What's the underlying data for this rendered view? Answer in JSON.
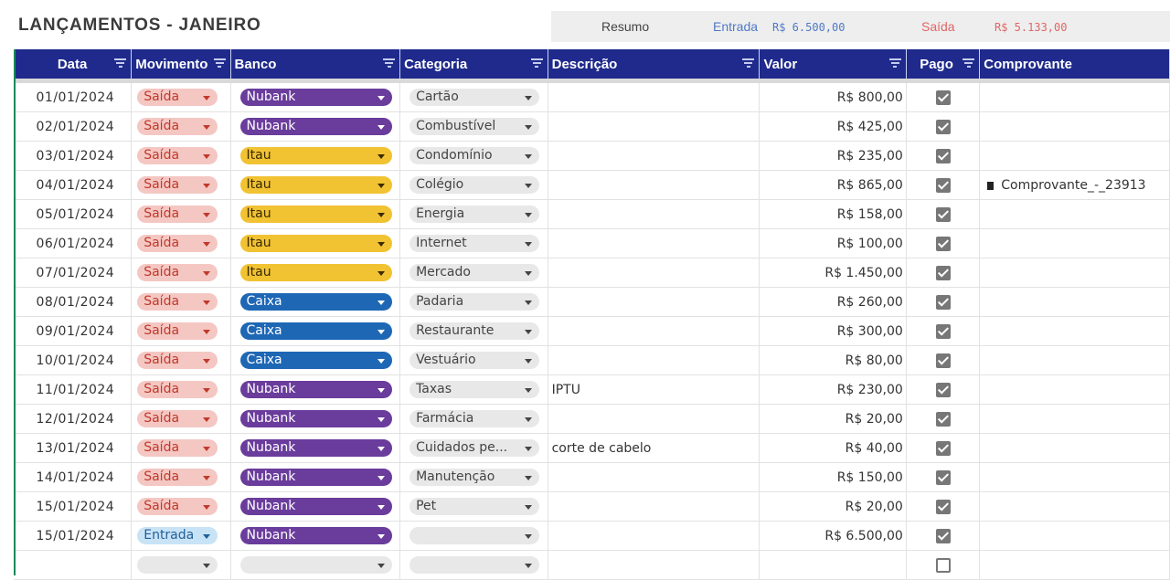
{
  "title": "LANÇAMENTOS - JANEIRO",
  "summary": {
    "label": "Resumo",
    "entrada_label": "Entrada",
    "entrada_value": "R$ 6.500,00",
    "saida_label": "Saída",
    "saida_value": "R$ 5.133,00"
  },
  "columns": [
    "Data",
    "Movimento",
    "Banco",
    "Categoria",
    "Descrição",
    "Valor",
    "Pago",
    "Comprovante"
  ],
  "colors": {
    "header_bg": "#1f2a8c",
    "saida_bg": "#f4c7c3",
    "saida_text": "#c0392b",
    "entrada_bg": "#c9e3f6",
    "entrada_text": "#1f5f99",
    "nubank": "#6a3c9c",
    "itau": "#f1c232",
    "caixa": "#1e67b5",
    "entrada_summary": "#5079c6",
    "saida_summary": "#e06666"
  },
  "rows": [
    {
      "data": "01/01/2024",
      "movimento": "Saída",
      "banco": "Nubank",
      "categoria": "Cartão",
      "descricao": "",
      "valor": "R$ 800,00",
      "pago": true,
      "comprovante": ""
    },
    {
      "data": "02/01/2024",
      "movimento": "Saída",
      "banco": "Nubank",
      "categoria": "Combustível",
      "descricao": "",
      "valor": "R$ 425,00",
      "pago": true,
      "comprovante": ""
    },
    {
      "data": "03/01/2024",
      "movimento": "Saída",
      "banco": "Itau",
      "categoria": "Condomínio",
      "descricao": "",
      "valor": "R$ 235,00",
      "pago": true,
      "comprovante": ""
    },
    {
      "data": "04/01/2024",
      "movimento": "Saída",
      "banco": "Itau",
      "categoria": "Colégio",
      "descricao": "",
      "valor": "R$ 865,00",
      "pago": true,
      "comprovante": "Comprovante_-_23913"
    },
    {
      "data": "05/01/2024",
      "movimento": "Saída",
      "banco": "Itau",
      "categoria": "Energia",
      "descricao": "",
      "valor": "R$ 158,00",
      "pago": true,
      "comprovante": ""
    },
    {
      "data": "06/01/2024",
      "movimento": "Saída",
      "banco": "Itau",
      "categoria": "Internet",
      "descricao": "",
      "valor": "R$ 100,00",
      "pago": true,
      "comprovante": ""
    },
    {
      "data": "07/01/2024",
      "movimento": "Saída",
      "banco": "Itau",
      "categoria": "Mercado",
      "descricao": "",
      "valor": "R$ 1.450,00",
      "pago": true,
      "comprovante": ""
    },
    {
      "data": "08/01/2024",
      "movimento": "Saída",
      "banco": "Caixa",
      "categoria": "Padaria",
      "descricao": "",
      "valor": "R$ 260,00",
      "pago": true,
      "comprovante": ""
    },
    {
      "data": "09/01/2024",
      "movimento": "Saída",
      "banco": "Caixa",
      "categoria": "Restaurante",
      "descricao": "",
      "valor": "R$ 300,00",
      "pago": true,
      "comprovante": ""
    },
    {
      "data": "10/01/2024",
      "movimento": "Saída",
      "banco": "Caixa",
      "categoria": "Vestuário",
      "descricao": "",
      "valor": "R$ 80,00",
      "pago": true,
      "comprovante": ""
    },
    {
      "data": "11/01/2024",
      "movimento": "Saída",
      "banco": "Nubank",
      "categoria": "Taxas",
      "descricao": "IPTU",
      "valor": "R$ 230,00",
      "pago": true,
      "comprovante": ""
    },
    {
      "data": "12/01/2024",
      "movimento": "Saída",
      "banco": "Nubank",
      "categoria": "Farmácia",
      "descricao": "",
      "valor": "R$ 20,00",
      "pago": true,
      "comprovante": ""
    },
    {
      "data": "13/01/2024",
      "movimento": "Saída",
      "banco": "Nubank",
      "categoria": "Cuidados pe...",
      "descricao": "corte de cabelo",
      "valor": "R$ 40,00",
      "pago": true,
      "comprovante": ""
    },
    {
      "data": "14/01/2024",
      "movimento": "Saída",
      "banco": "Nubank",
      "categoria": "Manutenção",
      "descricao": "",
      "valor": "R$ 150,00",
      "pago": true,
      "comprovante": ""
    },
    {
      "data": "15/01/2024",
      "movimento": "Saída",
      "banco": "Nubank",
      "categoria": "Pet",
      "descricao": "",
      "valor": "R$ 20,00",
      "pago": true,
      "comprovante": ""
    },
    {
      "data": "15/01/2024",
      "movimento": "Entrada",
      "banco": "Nubank",
      "categoria": "",
      "descricao": "",
      "valor": "R$ 6.500,00",
      "pago": true,
      "comprovante": ""
    },
    {
      "data": "",
      "movimento": "",
      "banco": "",
      "categoria": "",
      "descricao": "",
      "valor": "",
      "pago": false,
      "comprovante": ""
    }
  ]
}
